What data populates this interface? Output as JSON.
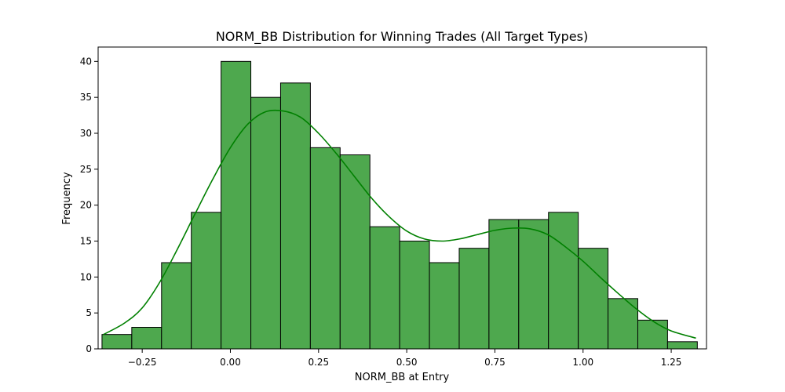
{
  "chart_data": {
    "type": "bar",
    "title": "NORM_BB Distribution for Winning Trades (All Target Types)",
    "xlabel": "NORM_BB at Entry",
    "ylabel": "Frequency",
    "xlim": [
      -0.375,
      1.35
    ],
    "ylim": [
      0,
      42
    ],
    "x_ticks": [
      -0.25,
      0.0,
      0.25,
      0.5,
      0.75,
      1.0,
      1.25
    ],
    "x_tick_labels": [
      "−0.25",
      "0.00",
      "0.25",
      "0.50",
      "0.75",
      "1.00",
      "1.25"
    ],
    "y_ticks": [
      0,
      5,
      10,
      15,
      20,
      25,
      30,
      35,
      40
    ],
    "y_tick_labels": [
      "0",
      "5",
      "10",
      "15",
      "20",
      "25",
      "30",
      "35",
      "40"
    ],
    "bin_edges": [
      -0.364,
      -0.2796,
      -0.1952,
      -0.1108,
      -0.0264,
      0.058,
      0.1424,
      0.2268,
      0.3112,
      0.3956,
      0.48,
      0.5644,
      0.6488,
      0.7332,
      0.8176,
      0.902,
      0.9864,
      1.0708,
      1.1552,
      1.2396,
      1.324
    ],
    "values": [
      2,
      3,
      12,
      19,
      40,
      35,
      37,
      28,
      27,
      17,
      15,
      12,
      14,
      18,
      18,
      19,
      14,
      7,
      4,
      1
    ],
    "kde": {
      "x": [
        -0.36,
        -0.3,
        -0.25,
        -0.2,
        -0.15,
        -0.1,
        -0.05,
        0.0,
        0.05,
        0.1,
        0.15,
        0.2,
        0.25,
        0.3,
        0.35,
        0.4,
        0.45,
        0.5,
        0.55,
        0.6,
        0.65,
        0.7,
        0.75,
        0.8,
        0.85,
        0.9,
        0.95,
        1.0,
        1.05,
        1.1,
        1.15,
        1.2,
        1.25,
        1.32
      ],
      "y": [
        2.0,
        3.6,
        5.7,
        9.3,
        13.9,
        18.8,
        23.6,
        28.0,
        31.3,
        33.0,
        33.1,
        32.2,
        30.0,
        27.2,
        24.1,
        21.0,
        18.4,
        16.4,
        15.3,
        15.0,
        15.3,
        15.9,
        16.5,
        16.8,
        16.7,
        15.9,
        14.2,
        12.2,
        9.9,
        7.7,
        5.6,
        3.8,
        2.5,
        1.5
      ]
    },
    "grid": false,
    "legend": "none",
    "bar_color": "#4ea84e",
    "bar_edge_color": "#000000",
    "line_color": "#008000"
  }
}
